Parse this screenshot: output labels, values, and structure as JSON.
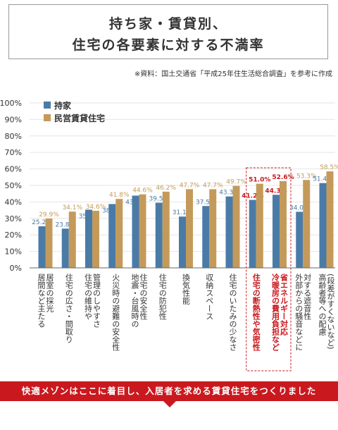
{
  "header": {
    "title_line1": "持ち家・賃貸別、",
    "title_line2": "住宅の各要素に対する不満率",
    "source": "※資料：国土交通省「平成25年住生活総合調査」を参考に作成"
  },
  "banner": {
    "text": "快適メゾンはここに着目し、入居者を求める賃貸住宅をつくりました"
  },
  "colors": {
    "owned": "#4a7ba7",
    "rental": "#c49a5b",
    "highlight": "#c9191f",
    "axis_text": "#333333",
    "grid": "#e6e6e6"
  },
  "chart_data": {
    "type": "bar",
    "y_tick_labels": [
      "0%",
      "10%",
      "20%",
      "30%",
      "40%",
      "50%",
      "60%",
      "70%",
      "80%",
      "90%",
      "100%"
    ],
    "ylim": [
      0,
      100
    ],
    "grid": true,
    "legend_position": "top-left",
    "categories": [
      "居間など主たる居室の採光",
      "住宅の広さ・間取り",
      "住宅の維持や管理のしやすさ",
      "火災時の避難の安全性",
      "地震・台風時の住宅の安全性",
      "住宅の防犯性",
      "換気性能",
      "収納スペース",
      "住宅のいたみの少なさ",
      "住宅の断熱性や気密性",
      "冷暖房の費用負担など省エネルギー対応",
      "外部からの騒音などに対する遮音性",
      "高齢者等への配慮(段差がすくないなど)"
    ],
    "category_lines": [
      [
        "居間など主たる",
        "居室の採光"
      ],
      [
        "住宅の広さ・間取り"
      ],
      [
        "住宅の維持や",
        "管理のしやすさ"
      ],
      [
        "火災時の避難の安全性"
      ],
      [
        "地震・台風時の",
        "住宅の安全性"
      ],
      [
        "住宅の防犯性"
      ],
      [
        "換気性能"
      ],
      [
        "収納スペース"
      ],
      [
        "住宅のいたみの少なさ"
      ],
      [
        "住宅の断熱性や気密性"
      ],
      [
        "冷暖房の費用負担など",
        "省エネルギー対応"
      ],
      [
        "外部からの騒音などに",
        "対する遮音性"
      ],
      [
        "高齢者等への配慮",
        "(段差がすくないなど)"
      ]
    ],
    "highlighted_categories": [
      9,
      10
    ],
    "series": [
      {
        "name": "持家",
        "values": [
          25.2,
          23.8,
          35.3,
          38.7,
          43.8,
          39.5,
          31.1,
          37.5,
          43.3,
          41.2,
          44.3,
          34.0,
          51.4
        ],
        "labels": [
          "25.2%",
          "23.8%",
          "35.3%",
          "38.7%",
          "43.8%",
          "39.5%",
          "31.1%",
          "37.5%",
          "43.3%",
          "41.2%",
          "44.3%",
          "34.0%",
          "51.4%"
        ]
      },
      {
        "name": "民営賃貸住宅",
        "values": [
          29.9,
          34.1,
          34.6,
          41.8,
          44.6,
          46.2,
          47.7,
          47.7,
          49.7,
          51.0,
          52.6,
          53.3,
          58.5
        ],
        "labels": [
          "29.9%",
          "34.1%",
          "34.6%",
          "41.8%",
          "44.6%",
          "46.2%",
          "47.7%",
          "47.7%",
          "49.7%",
          "51.0%",
          "52.6%",
          "53.3%",
          "58.5%"
        ]
      }
    ]
  }
}
